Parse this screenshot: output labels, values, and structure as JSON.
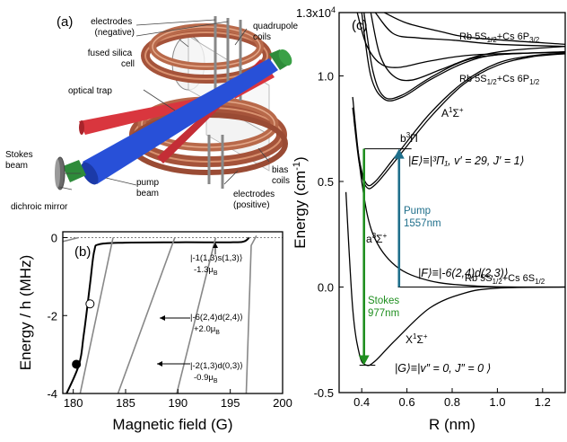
{
  "panel_a": {
    "label": "(a)",
    "electrodes_negative": "electrodes (negative)",
    "electrodes_positive": "electrodes (positive)",
    "fused_silica_cell": "fused silica cell",
    "quadrupole_coils": "quadrupole coils",
    "optical_trap": "optical trap",
    "stokes_beam": "Stokes beam",
    "pump_beam": "pump beam",
    "dichroic_mirror": "dichroic mirror",
    "bias_coils": "bias coils",
    "colors": {
      "coil": "#b8694a",
      "stokes": "#2e8b3a",
      "pump": "#2850d8",
      "trap": "#d9363e"
    }
  },
  "chart_data": [
    {
      "type": "line",
      "panel": "(b)",
      "xlabel": "Magnetic field (G)",
      "ylabel": "Energy / h (MHz)",
      "xlim": [
        179,
        200
      ],
      "ylim": [
        -4,
        0.15
      ],
      "xticks": [
        "180",
        "185",
        "190",
        "195",
        "200"
      ],
      "yticks": [
        "0",
        "-2",
        "-4"
      ],
      "series": [
        {
          "color": "#000000",
          "points": [
            [
              179,
              -4.2
            ],
            [
              180.5,
              -3.3
            ],
            [
              181.0,
              -2.5
            ],
            [
              181.6,
              -1.2
            ],
            [
              182.0,
              -0.35
            ],
            [
              182.5,
              -0.17
            ],
            [
              185,
              -0.13
            ],
            [
              190,
              -0.12
            ],
            [
              195,
              -0.12
            ],
            [
              196.3,
              -0.1
            ],
            [
              196.8,
              0
            ]
          ]
        },
        {
          "color": "#888888",
          "points": [
            [
              180.5,
              -4.2
            ],
            [
              183.8,
              0
            ]
          ]
        },
        {
          "color": "#888888",
          "points": [
            [
              184,
              -4.2
            ],
            [
              189.7,
              0
            ]
          ]
        },
        {
          "color": "#888888",
          "points": [
            [
              189.7,
              -4.2
            ],
            [
              193.6,
              0
            ]
          ]
        },
        {
          "color": "#888888",
          "points": [
            [
              196.5,
              -4.2
            ],
            [
              197,
              -0.2
            ],
            [
              197.5,
              0.05
            ]
          ]
        },
        {
          "color": "#888888",
          "points": [
            [
              179,
              -0.1
            ],
            [
              180.5,
              0
            ]
          ]
        }
      ],
      "markers": [
        {
          "x": 181.6,
          "y": -1.7,
          "filled": false
        },
        {
          "x": 180.3,
          "y": -3.25,
          "filled": true
        }
      ],
      "annotations": [
        {
          "ket": "|-1(1,3)s(1,3)⟩",
          "moment": "-1.3μ",
          "moment_sub": "B"
        },
        {
          "ket": "|-6(2,4)d(2,4)⟩",
          "moment": "+2.0μ",
          "moment_sub": "B"
        },
        {
          "ket": "|-2(1,3)d(0,3)⟩",
          "moment": "-0.9μ",
          "moment_sub": "B"
        }
      ]
    },
    {
      "type": "line",
      "panel": "(c)",
      "xlabel": "R (nm)",
      "ylabel": "Energy (cm",
      "ylabel_sup": "-1",
      "ylabel_tail": ")",
      "xlim": [
        0.3,
        1.3
      ],
      "ylim": [
        -0.5,
        1.3
      ],
      "y_multiplier": "x10",
      "y_multiplier_sup": "4",
      "ytick_top": "1.3",
      "xticks": [
        "0.4",
        "0.6",
        "0.8",
        "1.0",
        "1.2"
      ],
      "yticks": [
        "-0.5",
        "0.0",
        "0.5",
        "1.0"
      ],
      "asymptotes": [
        {
          "label": "Rb 5S",
          "sub1": "1/2",
          "mid": "+Cs 6P",
          "sub2": "3/2",
          "y": 1.14
        },
        {
          "label": "Rb 5S",
          "sub1": "1/2",
          "mid": "+Cs 6P",
          "sub2": "1/2",
          "y": 1.11
        },
        {
          "label": "Rb 5S",
          "sub1": "1/2",
          "mid": "+Cs 6S",
          "sub2": "1/2",
          "y": 0.0
        }
      ],
      "states": {
        "b3pi": {
          "text": "b",
          "sup": "3",
          "tail": "Π"
        },
        "A1sigma": {
          "text": "A",
          "sup": "1",
          "tail": "Σ",
          "tail_sup": "+"
        },
        "a3sigma": {
          "text": "a",
          "sup": "3",
          "tail": "Σ",
          "tail_sup": "+"
        },
        "X1sigma": {
          "text": "X",
          "sup": "1",
          "tail": "Σ",
          "tail_sup": "+"
        }
      },
      "kets": {
        "E": "|E⟩≡|³Π₁, v′ = 29, J′ = 1⟩",
        "F": "|F⟩≡|-6(2,4)d(2,3)⟩",
        "G": "|G⟩≡|v″ = 0, J″ = 0 ⟩"
      },
      "levels": {
        "E": 0.655,
        "F": 0.0,
        "G": -0.37
      },
      "transitions": [
        {
          "name": "Pump",
          "wavelength": "1557nm",
          "color": "#1f6f8b",
          "x": 0.565,
          "from": 0.0,
          "to": 0.655
        },
        {
          "name": "Stokes",
          "wavelength": "977nm",
          "color": "#1f8f1f",
          "x": 0.41,
          "from": 0.655,
          "to": -0.37
        }
      ],
      "curves": {
        "X": [
          [
            0.33,
            0.45
          ],
          [
            0.36,
            -0.1
          ],
          [
            0.39,
            -0.32
          ],
          [
            0.42,
            -0.37
          ],
          [
            0.46,
            -0.35
          ],
          [
            0.55,
            -0.25
          ],
          [
            0.7,
            -0.1
          ],
          [
            0.85,
            -0.03
          ],
          [
            1.0,
            -0.005
          ],
          [
            1.3,
            0
          ]
        ],
        "a": [
          [
            0.36,
            0.9
          ],
          [
            0.4,
            0.5
          ],
          [
            0.45,
            0.25
          ],
          [
            0.55,
            0.1
          ],
          [
            0.7,
            0.03
          ],
          [
            0.9,
            0.005
          ],
          [
            1.1,
            0
          ],
          [
            1.3,
            0
          ]
        ],
        "b": [
          [
            0.36,
            0.85
          ],
          [
            0.39,
            0.6
          ],
          [
            0.42,
            0.49
          ],
          [
            0.46,
            0.5
          ],
          [
            0.55,
            0.62
          ],
          [
            0.7,
            0.82
          ],
          [
            0.85,
            0.97
          ],
          [
            1.0,
            1.06
          ],
          [
            1.15,
            1.095
          ],
          [
            1.3,
            1.108
          ]
        ],
        "b2": [
          [
            0.365,
            0.8
          ],
          [
            0.39,
            0.58
          ],
          [
            0.42,
            0.475
          ],
          [
            0.46,
            0.485
          ],
          [
            0.55,
            0.6
          ],
          [
            0.7,
            0.8
          ],
          [
            0.85,
            0.96
          ],
          [
            1.0,
            1.05
          ],
          [
            1.15,
            1.09
          ],
          [
            1.3,
            1.105
          ]
        ],
        "A": [
          [
            0.4,
            1.3
          ],
          [
            0.44,
            1.0
          ],
          [
            0.5,
            0.89
          ],
          [
            0.58,
            0.9
          ],
          [
            0.7,
            0.98
          ],
          [
            0.85,
            1.06
          ],
          [
            1.0,
            1.1
          ],
          [
            1.3,
            1.112
          ]
        ],
        "A2": [
          [
            0.41,
            1.3
          ],
          [
            0.45,
            1.02
          ],
          [
            0.5,
            0.9
          ],
          [
            0.58,
            0.91
          ],
          [
            0.7,
            0.99
          ],
          [
            0.85,
            1.07
          ],
          [
            1.0,
            1.1
          ],
          [
            1.3,
            1.115
          ]
        ],
        "upper1": [
          [
            0.44,
            1.3
          ],
          [
            0.48,
            1.1
          ],
          [
            0.54,
            1.0
          ],
          [
            0.62,
            0.98
          ],
          [
            0.75,
            1.03
          ],
          [
            0.9,
            1.09
          ],
          [
            1.05,
            1.12
          ],
          [
            1.3,
            1.14
          ]
        ],
        "upper2": [
          [
            0.46,
            1.3
          ],
          [
            0.54,
            1.2
          ],
          [
            0.65,
            1.18
          ],
          [
            0.8,
            1.17
          ],
          [
            1.0,
            1.15
          ],
          [
            1.3,
            1.14
          ]
        ],
        "upper3": [
          [
            0.5,
            1.3
          ],
          [
            0.6,
            1.25
          ],
          [
            0.75,
            1.21
          ],
          [
            0.9,
            1.18
          ],
          [
            1.3,
            1.15
          ]
        ],
        "upper4": [
          [
            0.38,
            1.3
          ],
          [
            0.42,
            1.15
          ],
          [
            0.48,
            1.06
          ],
          [
            0.56,
            1.04
          ],
          [
            0.7,
            1.07
          ],
          [
            0.9,
            1.1
          ],
          [
            1.3,
            1.112
          ]
        ]
      }
    }
  ]
}
